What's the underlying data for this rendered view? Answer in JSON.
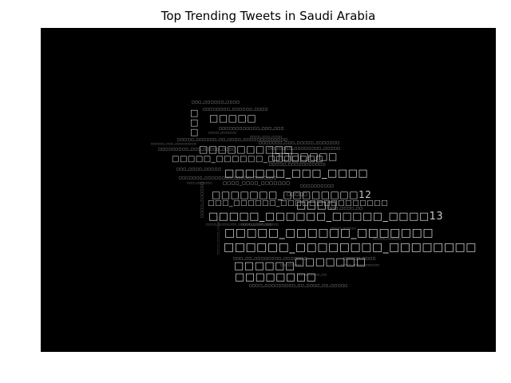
{
  "title": "Top Trending Tweets in Saudi Arabia",
  "colors": {
    "background": "#ffffff",
    "plot_background": "#000000",
    "word": "#c8c8c8"
  },
  "words": [
    {
      "text": "□□□_□□□□□□_□□□□"
    },
    {
      "text": "□□□□□□□□_□□□□□□_□□□□"
    },
    {
      "text": "□"
    },
    {
      "text": "□□□□□"
    },
    {
      "text": "□"
    },
    {
      "text": "□□□□□□□□□□□□_□□□_□□□"
    },
    {
      "text": "□"
    },
    {
      "text": "□□□□_□□□□□□"
    },
    {
      "text": "□□□□□_□□□□□□_□□_□□□□_□□□□□□□□□□□□□"
    },
    {
      "text": "□□□□_□□□_□□□□"
    },
    {
      "text": "□□□□□□□_□□□_□□□□□_□□□□□□□"
    },
    {
      "text": "□□□□□_□□□_□□□□□□□□"
    },
    {
      "text": "□□□□□□□□□□"
    },
    {
      "text": "□□□□□□□□□_□□□_□□□□□_□□□□"
    },
    {
      "text": "□□□□□□□_□□□□□□□□_□□□□□"
    },
    {
      "text": "□□□□□□□"
    },
    {
      "text": "□□□□□_□□□□□□_□□□□□□□"
    },
    {
      "text": "□□□□□_□□□□□□□□□□□"
    },
    {
      "text": "□□□_□□□□_□□□□□"
    },
    {
      "text": "□□□□□□_□□□_□□□□"
    },
    {
      "text": "□□□□□□□_□□□□□□□□_□□□□□_□□□□□□□"
    },
    {
      "text": "□□□_□□□□□□"
    },
    {
      "text": "□□□□_□□□□_□□□□□□□"
    },
    {
      "text": "□□□□□□□□□□"
    },
    {
      "text": "□□□□□□□_□□□□□□□□12"
    },
    {
      "text": "□□□□□"
    },
    {
      "text": "□□□_□□□□□□_□□□□□□□□□□□□□□□"
    },
    {
      "text": "□□□□"
    },
    {
      "text": "□□□_□□□□_□□"
    },
    {
      "text": "□□□□□_□□□□□□_□□□□□_□□□□13"
    },
    {
      "text": "□□□□_□□□□□□□_□□□□□□_□□□□□□"
    },
    {
      "text": "□□□□_□□□□_□□□□□"
    },
    {
      "text": "□□□□_□□□□□"
    },
    {
      "text": "□□□□□_□□□□□□_□□□□□□□"
    },
    {
      "text": "□□□□□□_□□□□□□□□_□□□□□□□□"
    },
    {
      "text": "□□□□□_□□□□□"
    },
    {
      "text": "□□□_□□_□□□□□□□□_□□□□□□□"
    },
    {
      "text": "□□□□□□"
    },
    {
      "text": "□□□□□□□"
    },
    {
      "text": "□□□□□_□□□□"
    },
    {
      "text": "□□□□_□□□□□□□□□□"
    },
    {
      "text": "□□□□□□□□"
    },
    {
      "text": "□□□□_□□□□_□□"
    },
    {
      "text": "□□□□□□□□"
    },
    {
      "text": "□□□□_□□□□□□□□□_□□_□□□□_□□_□□□□□"
    }
  ]
}
